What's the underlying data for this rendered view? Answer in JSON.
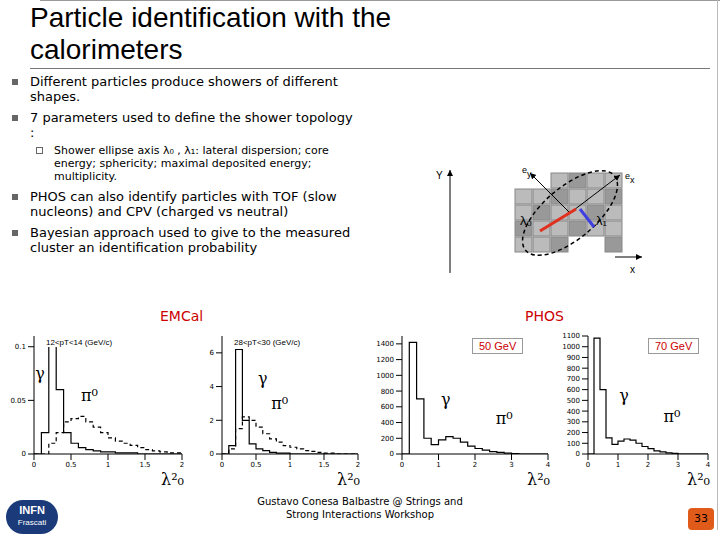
{
  "slide": {
    "title": "Particle identification with the calorimeters",
    "bullets": [
      {
        "text": "Different particles produce showers of different shapes.",
        "sub": []
      },
      {
        "text": "7 parameters used to define the shower topology :",
        "sub": [
          "Shower ellipse axis λ₀ , λ₁: lateral dispersion; core energy; sphericity; maximal deposited energy; multiplicity."
        ]
      },
      {
        "text": "PHOS can also identify particles with TOF (slow nucleons) and CPV (charged vs neutral)",
        "sub": []
      },
      {
        "text": "Bayesian approach used to give to the measured cluster an identification probability",
        "sub": []
      }
    ],
    "diagram": {
      "axis_y": "Y",
      "axis_x": "x",
      "e_y": {
        "base": "e",
        "sub": "y"
      },
      "e_x": {
        "base": "e",
        "sub": "x"
      },
      "lambda0": "λ₀",
      "lambda1": "λ₁"
    },
    "section_labels": [
      "EMCal",
      "PHOS"
    ],
    "footer": "Gustavo Conesa Balbastre @ Strings and Strong Interactions Workshop",
    "page": "33",
    "logo": [
      "INFN",
      "Frascati"
    ]
  },
  "chart_data": [
    {
      "type": "histogram",
      "title": "12<pT<14 (GeV/c)",
      "x_label": "λ²₀",
      "bins": [
        0,
        0.1,
        0.2,
        0.3,
        0.4,
        0.5,
        0.6,
        0.7,
        0.8,
        0.9,
        1,
        1.1,
        1.2,
        1.3,
        1.4,
        1.5,
        1.6,
        1.7,
        1.8,
        1.9,
        2
      ],
      "series": [
        {
          "color": "#000000",
          "line_style": "solid",
          "values": [
            0,
            0.02,
            0.105,
            0.06,
            0.02,
            0.01,
            0.006,
            0.004,
            0.003,
            0.002,
            0.002,
            0.001,
            0.001,
            0.001,
            0,
            0,
            0,
            0,
            0,
            0
          ]
        },
        {
          "color": "#000000",
          "line_style": "dashed",
          "values": [
            0,
            0,
            0.01,
            0.02,
            0.03,
            0.033,
            0.035,
            0.03,
            0.025,
            0.02,
            0.015,
            0.012,
            0.01,
            0.008,
            0.006,
            0.004,
            0.003,
            0.002,
            0.001,
            0.001
          ]
        }
      ],
      "xlim": [
        0,
        2
      ],
      "xticks": [
        0,
        0.5,
        1,
        1.5,
        2
      ],
      "ylim": [
        0,
        0.11
      ],
      "yticks": [
        0,
        0.05,
        0.1
      ],
      "annotations": [
        {
          "text": "γ",
          "x": 0.08,
          "y": 0.075
        },
        {
          "text": "π⁰",
          "x": 0.75,
          "y": 0.055
        }
      ]
    },
    {
      "type": "histogram",
      "title": "28<pT<30 (GeV/c)",
      "x_label": "λ²₀",
      "bins": [
        0,
        0.1,
        0.2,
        0.3,
        0.4,
        0.5,
        0.6,
        0.7,
        0.8,
        0.9,
        1,
        1.1,
        1.2,
        1.3,
        1.4,
        1.5,
        1.6,
        1.7,
        1.8,
        1.9,
        2
      ],
      "series": [
        {
          "color": "#000000",
          "line_style": "solid",
          "values": [
            0,
            0.5,
            6.2,
            2,
            0.6,
            0.3,
            0.2,
            0.1,
            0.05,
            0.05,
            0,
            0,
            0,
            0,
            0,
            0,
            0,
            0,
            0,
            0
          ]
        },
        {
          "color": "#000000",
          "line_style": "dashed",
          "values": [
            0,
            0.3,
            1.5,
            2.2,
            2,
            1.6,
            1.2,
            0.9,
            0.7,
            0.5,
            0.4,
            0.3,
            0.2,
            0.15,
            0.1,
            0.05,
            0.05,
            0,
            0,
            0
          ]
        }
      ],
      "xlim": [
        0,
        2
      ],
      "xticks": [
        0,
        0.5,
        1,
        1.5,
        2
      ],
      "ylim": [
        0,
        7
      ],
      "yticks": [
        0,
        2,
        4,
        6
      ],
      "annotations": [
        {
          "text": "γ",
          "x": 0.6,
          "y": 4.5
        },
        {
          "text": "π⁰",
          "x": 0.85,
          "y": 3
        }
      ]
    },
    {
      "type": "histogram",
      "title": "50 GeV",
      "x_label": "λ²₀",
      "bins": [
        0,
        0.2,
        0.4,
        0.6,
        0.8,
        1,
        1.2,
        1.4,
        1.6,
        1.8,
        2,
        2.2,
        2.4,
        2.6,
        2.8,
        3,
        3.2,
        3.4,
        3.6,
        3.8,
        4
      ],
      "series": [
        {
          "color": "#000000",
          "line_style": "solid",
          "values": [
            0,
            1420,
            700,
            200,
            120,
            180,
            220,
            200,
            150,
            100,
            70,
            50,
            30,
            20,
            10,
            5,
            0,
            0,
            0,
            0
          ]
        }
      ],
      "xlim": [
        0,
        4
      ],
      "xticks": [
        0,
        1,
        2,
        3,
        4
      ],
      "ylim": [
        0,
        1500
      ],
      "yticks": [
        0,
        200,
        400,
        600,
        800,
        1000,
        1200,
        1400
      ],
      "annotations": [
        {
          "text": "γ",
          "x": 1.2,
          "y": 700
        },
        {
          "text": "π⁰",
          "x": 2.8,
          "y": 450
        }
      ]
    },
    {
      "type": "histogram",
      "title": "70 GeV",
      "x_label": "λ²₀",
      "bins": [
        0,
        0.2,
        0.4,
        0.6,
        0.8,
        1,
        1.2,
        1.4,
        1.6,
        1.8,
        2,
        2.2,
        2.4,
        2.6,
        2.8,
        3,
        3.2,
        3.4,
        3.6,
        3.8,
        4
      ],
      "series": [
        {
          "color": "#000000",
          "line_style": "solid",
          "values": [
            0,
            1080,
            600,
            150,
            90,
            120,
            140,
            130,
            100,
            70,
            50,
            30,
            20,
            10,
            5,
            0,
            0,
            0,
            0,
            0
          ]
        }
      ],
      "xlim": [
        0,
        4
      ],
      "xticks": [
        0,
        1,
        2,
        3,
        4
      ],
      "ylim": [
        0,
        1100
      ],
      "yticks": [
        0,
        100,
        200,
        300,
        400,
        500,
        600,
        700,
        800,
        900,
        1000,
        1100
      ],
      "annotations": [
        {
          "text": "γ",
          "x": 1.2,
          "y": 550
        },
        {
          "text": "π⁰",
          "x": 2.8,
          "y": 350
        }
      ]
    }
  ]
}
